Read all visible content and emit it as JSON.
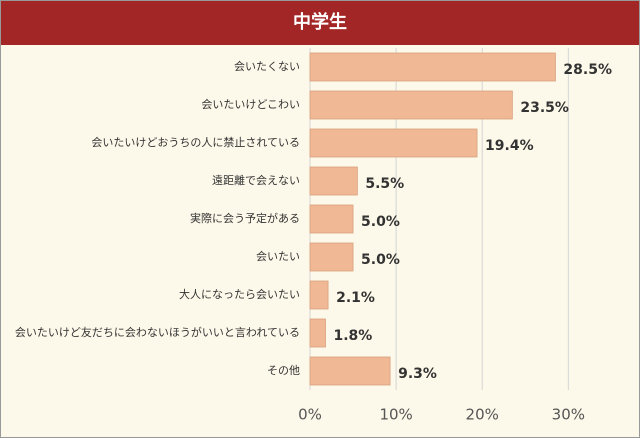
{
  "chart_data": {
    "type": "bar",
    "orientation": "horizontal",
    "title": "中学生",
    "categories": [
      "会いたくない",
      "会いたいけどこわい",
      "会いたいけどおうちの人に禁止されている",
      "遠距離で会えない",
      "実際に会う予定がある",
      "会いたい",
      "大人になったら会いたい",
      "会いたいけど友だちに会わないほうがいいと言われている",
      "その他"
    ],
    "values": [
      28.5,
      23.5,
      19.4,
      5.5,
      5.0,
      5.0,
      2.1,
      1.8,
      9.3
    ],
    "value_labels": [
      "28.5%",
      "23.5%",
      "19.4%",
      "5.5%",
      "5.0%",
      "5.0%",
      "2.1%",
      "1.8%",
      "9.3%"
    ],
    "color": "#f0b894",
    "xlim": [
      0,
      36
    ],
    "xticks": [
      {
        "value": 0,
        "label": "0%"
      },
      {
        "value": 10,
        "label": "10%"
      },
      {
        "value": 20,
        "label": "20%"
      },
      {
        "value": 30,
        "label": "30%"
      }
    ],
    "grid": true
  }
}
